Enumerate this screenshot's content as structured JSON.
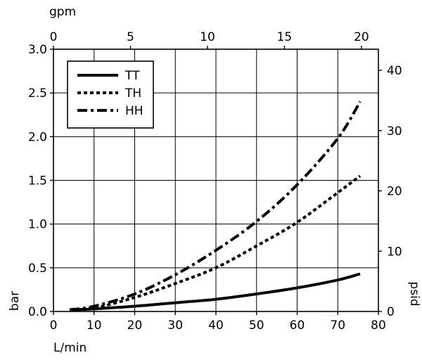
{
  "chart_data": {
    "type": "line",
    "title": "",
    "xlabel": "L/min",
    "ylabel": "bar",
    "x2label": "gpm",
    "y2label": "psid",
    "xlim": [
      0,
      80
    ],
    "ylim": [
      0,
      3.0
    ],
    "x2lim": [
      0,
      21.1
    ],
    "y2lim": [
      0,
      43.5
    ],
    "x_ticks": [
      "0",
      "10",
      "20",
      "30",
      "40",
      "50",
      "60",
      "70",
      "80"
    ],
    "y_ticks": [
      "0.0",
      "0.5",
      "1.0",
      "1.5",
      "2.0",
      "2.5",
      "3.0"
    ],
    "x2_ticks": [
      "0",
      "5",
      "10",
      "15",
      "20"
    ],
    "y2_ticks": [
      "0",
      "10",
      "20",
      "30",
      "40"
    ],
    "grid": true,
    "legend_position": "top-left",
    "series": [
      {
        "name": "TT",
        "style": "solid",
        "x": [
          4,
          10,
          20,
          30,
          40,
          50,
          60,
          70,
          75.5
        ],
        "y": [
          0.02,
          0.03,
          0.06,
          0.1,
          0.14,
          0.2,
          0.27,
          0.36,
          0.43
        ]
      },
      {
        "name": "TH",
        "style": "dotted",
        "x": [
          4,
          10,
          20,
          30,
          40,
          50,
          60,
          70,
          75.5
        ],
        "y": [
          0.02,
          0.04,
          0.16,
          0.32,
          0.5,
          0.75,
          1.02,
          1.36,
          1.55
        ]
      },
      {
        "name": "HH",
        "style": "dash-dot",
        "x": [
          4,
          10,
          20,
          30,
          40,
          50,
          60,
          70,
          75.5
        ],
        "y": [
          0.02,
          0.06,
          0.2,
          0.42,
          0.7,
          1.03,
          1.45,
          1.98,
          2.4
        ]
      }
    ]
  }
}
